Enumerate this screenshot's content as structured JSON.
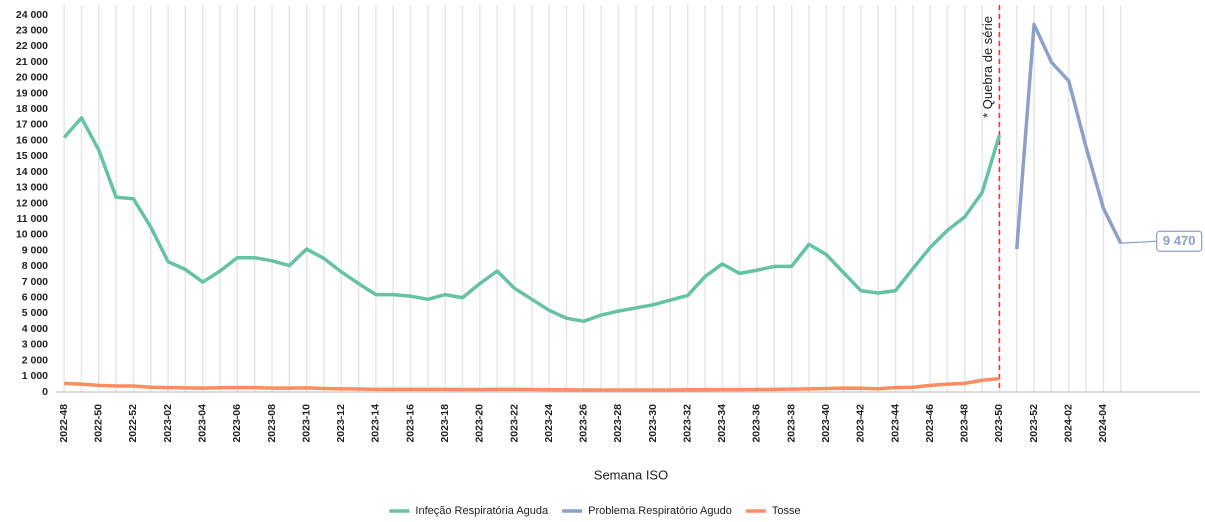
{
  "chart_data": {
    "type": "line",
    "x_label": "Semana ISO",
    "annotation": "* Quebra de série",
    "break_at": "2023-50",
    "grid": "x",
    "legend": "bottom",
    "categories": [
      "2022-48",
      null,
      "2022-50",
      null,
      "2022-52",
      null,
      "2023-02",
      null,
      "2023-04",
      null,
      "2023-06",
      null,
      "2023-08",
      null,
      "2023-10",
      null,
      "2023-12",
      null,
      "2023-14",
      null,
      "2023-16",
      null,
      "2023-18",
      null,
      "2023-20",
      null,
      "2023-22",
      null,
      "2023-24",
      null,
      "2023-26",
      null,
      "2023-28",
      null,
      "2023-30",
      null,
      "2023-32",
      null,
      "2023-34",
      null,
      "2023-36",
      null,
      "2023-38",
      null,
      "2023-40",
      null,
      "2023-42",
      null,
      "2023-44",
      null,
      "2023-46",
      null,
      "2023-48",
      null,
      "2023-50",
      null,
      "2023-52",
      null,
      "2024-02",
      null,
      "2024-04",
      null
    ],
    "ylim": [
      0,
      24000
    ],
    "yticks": [
      {
        "value": 0,
        "label": "0"
      },
      {
        "value": 1000,
        "label": "1 000"
      },
      {
        "value": 2000,
        "label": "2 000"
      },
      {
        "value": 3000,
        "label": "3 000"
      },
      {
        "value": 4000,
        "label": "4 000"
      },
      {
        "value": 5000,
        "label": "5 000"
      },
      {
        "value": 6000,
        "label": "6 000"
      },
      {
        "value": 7000,
        "label": "7 000"
      },
      {
        "value": 8000,
        "label": "8 000"
      },
      {
        "value": 9000,
        "label": "9 000"
      },
      {
        "value": 10000,
        "label": "10 000"
      },
      {
        "value": 11000,
        "label": "11 000"
      },
      {
        "value": 12000,
        "label": "12 000"
      },
      {
        "value": 13000,
        "label": "13 000"
      },
      {
        "value": 14000,
        "label": "14 000"
      },
      {
        "value": 15000,
        "label": "15 000"
      },
      {
        "value": 16000,
        "label": "16 000"
      },
      {
        "value": 17000,
        "label": "17 000"
      },
      {
        "value": 18000,
        "label": "18 000"
      },
      {
        "value": 19000,
        "label": "19 000"
      },
      {
        "value": 20000,
        "label": "20 000"
      },
      {
        "value": 21000,
        "label": "21 000"
      },
      {
        "value": 22000,
        "label": "22 000"
      },
      {
        "value": 23000,
        "label": "23 000"
      },
      {
        "value": 24000,
        "label": "24 000"
      }
    ],
    "series": [
      {
        "name": "Infeção Respiratória Aguda",
        "color": "#66c2a5",
        "values": [
          16200,
          17450,
          15400,
          12400,
          12300,
          10500,
          8300,
          7800,
          7000,
          7700,
          8550,
          8550,
          8350,
          8050,
          9100,
          8500,
          7650,
          6900,
          6200,
          6200,
          6100,
          5900,
          6200,
          6000,
          6900,
          7700,
          6600,
          5900,
          5200,
          4700,
          4500,
          4900,
          5150,
          5350,
          5550,
          5850,
          6150,
          7350,
          8150,
          7550,
          7750,
          8000,
          8000,
          9400,
          8750,
          7600,
          6450,
          6300,
          6450,
          7850,
          9200,
          10300,
          11150,
          12700,
          16350,
          null,
          null,
          null,
          null,
          null,
          null,
          null
        ]
      },
      {
        "name": "Problema Respiratório Agudo",
        "color": "#8da0cb",
        "values": [
          null,
          null,
          null,
          null,
          null,
          null,
          null,
          null,
          null,
          null,
          null,
          null,
          null,
          null,
          null,
          null,
          null,
          null,
          null,
          null,
          null,
          null,
          null,
          null,
          null,
          null,
          null,
          null,
          null,
          null,
          null,
          null,
          null,
          null,
          null,
          null,
          null,
          null,
          null,
          null,
          null,
          null,
          null,
          null,
          null,
          null,
          null,
          null,
          null,
          null,
          null,
          null,
          null,
          null,
          null,
          9100,
          23400,
          21000,
          19800,
          15600,
          11700,
          9470
        ],
        "value_labels": [
          null,
          null,
          null,
          null,
          null,
          null,
          null,
          null,
          null,
          null,
          null,
          null,
          null,
          null,
          null,
          null,
          null,
          null,
          null,
          null,
          null,
          null,
          null,
          null,
          null,
          null,
          null,
          null,
          null,
          null,
          null,
          null,
          null,
          null,
          null,
          null,
          null,
          null,
          null,
          null,
          null,
          null,
          null,
          null,
          null,
          null,
          null,
          null,
          null,
          null,
          null,
          null,
          null,
          null,
          null,
          null,
          null,
          null,
          null,
          null,
          null,
          "9 470"
        ]
      },
      {
        "name": "Tosse",
        "color": "#fc8d62",
        "values": [
          550,
          500,
          420,
          380,
          380,
          300,
          280,
          260,
          250,
          270,
          290,
          280,
          250,
          250,
          260,
          220,
          200,
          190,
          170,
          170,
          170,
          170,
          170,
          160,
          160,
          170,
          170,
          160,
          140,
          140,
          130,
          130,
          130,
          130,
          130,
          130,
          140,
          140,
          150,
          150,
          160,
          170,
          180,
          200,
          220,
          250,
          240,
          210,
          280,
          300,
          420,
          500,
          550,
          750,
          850,
          null,
          null,
          null,
          null,
          null,
          null,
          null
        ]
      }
    ]
  }
}
